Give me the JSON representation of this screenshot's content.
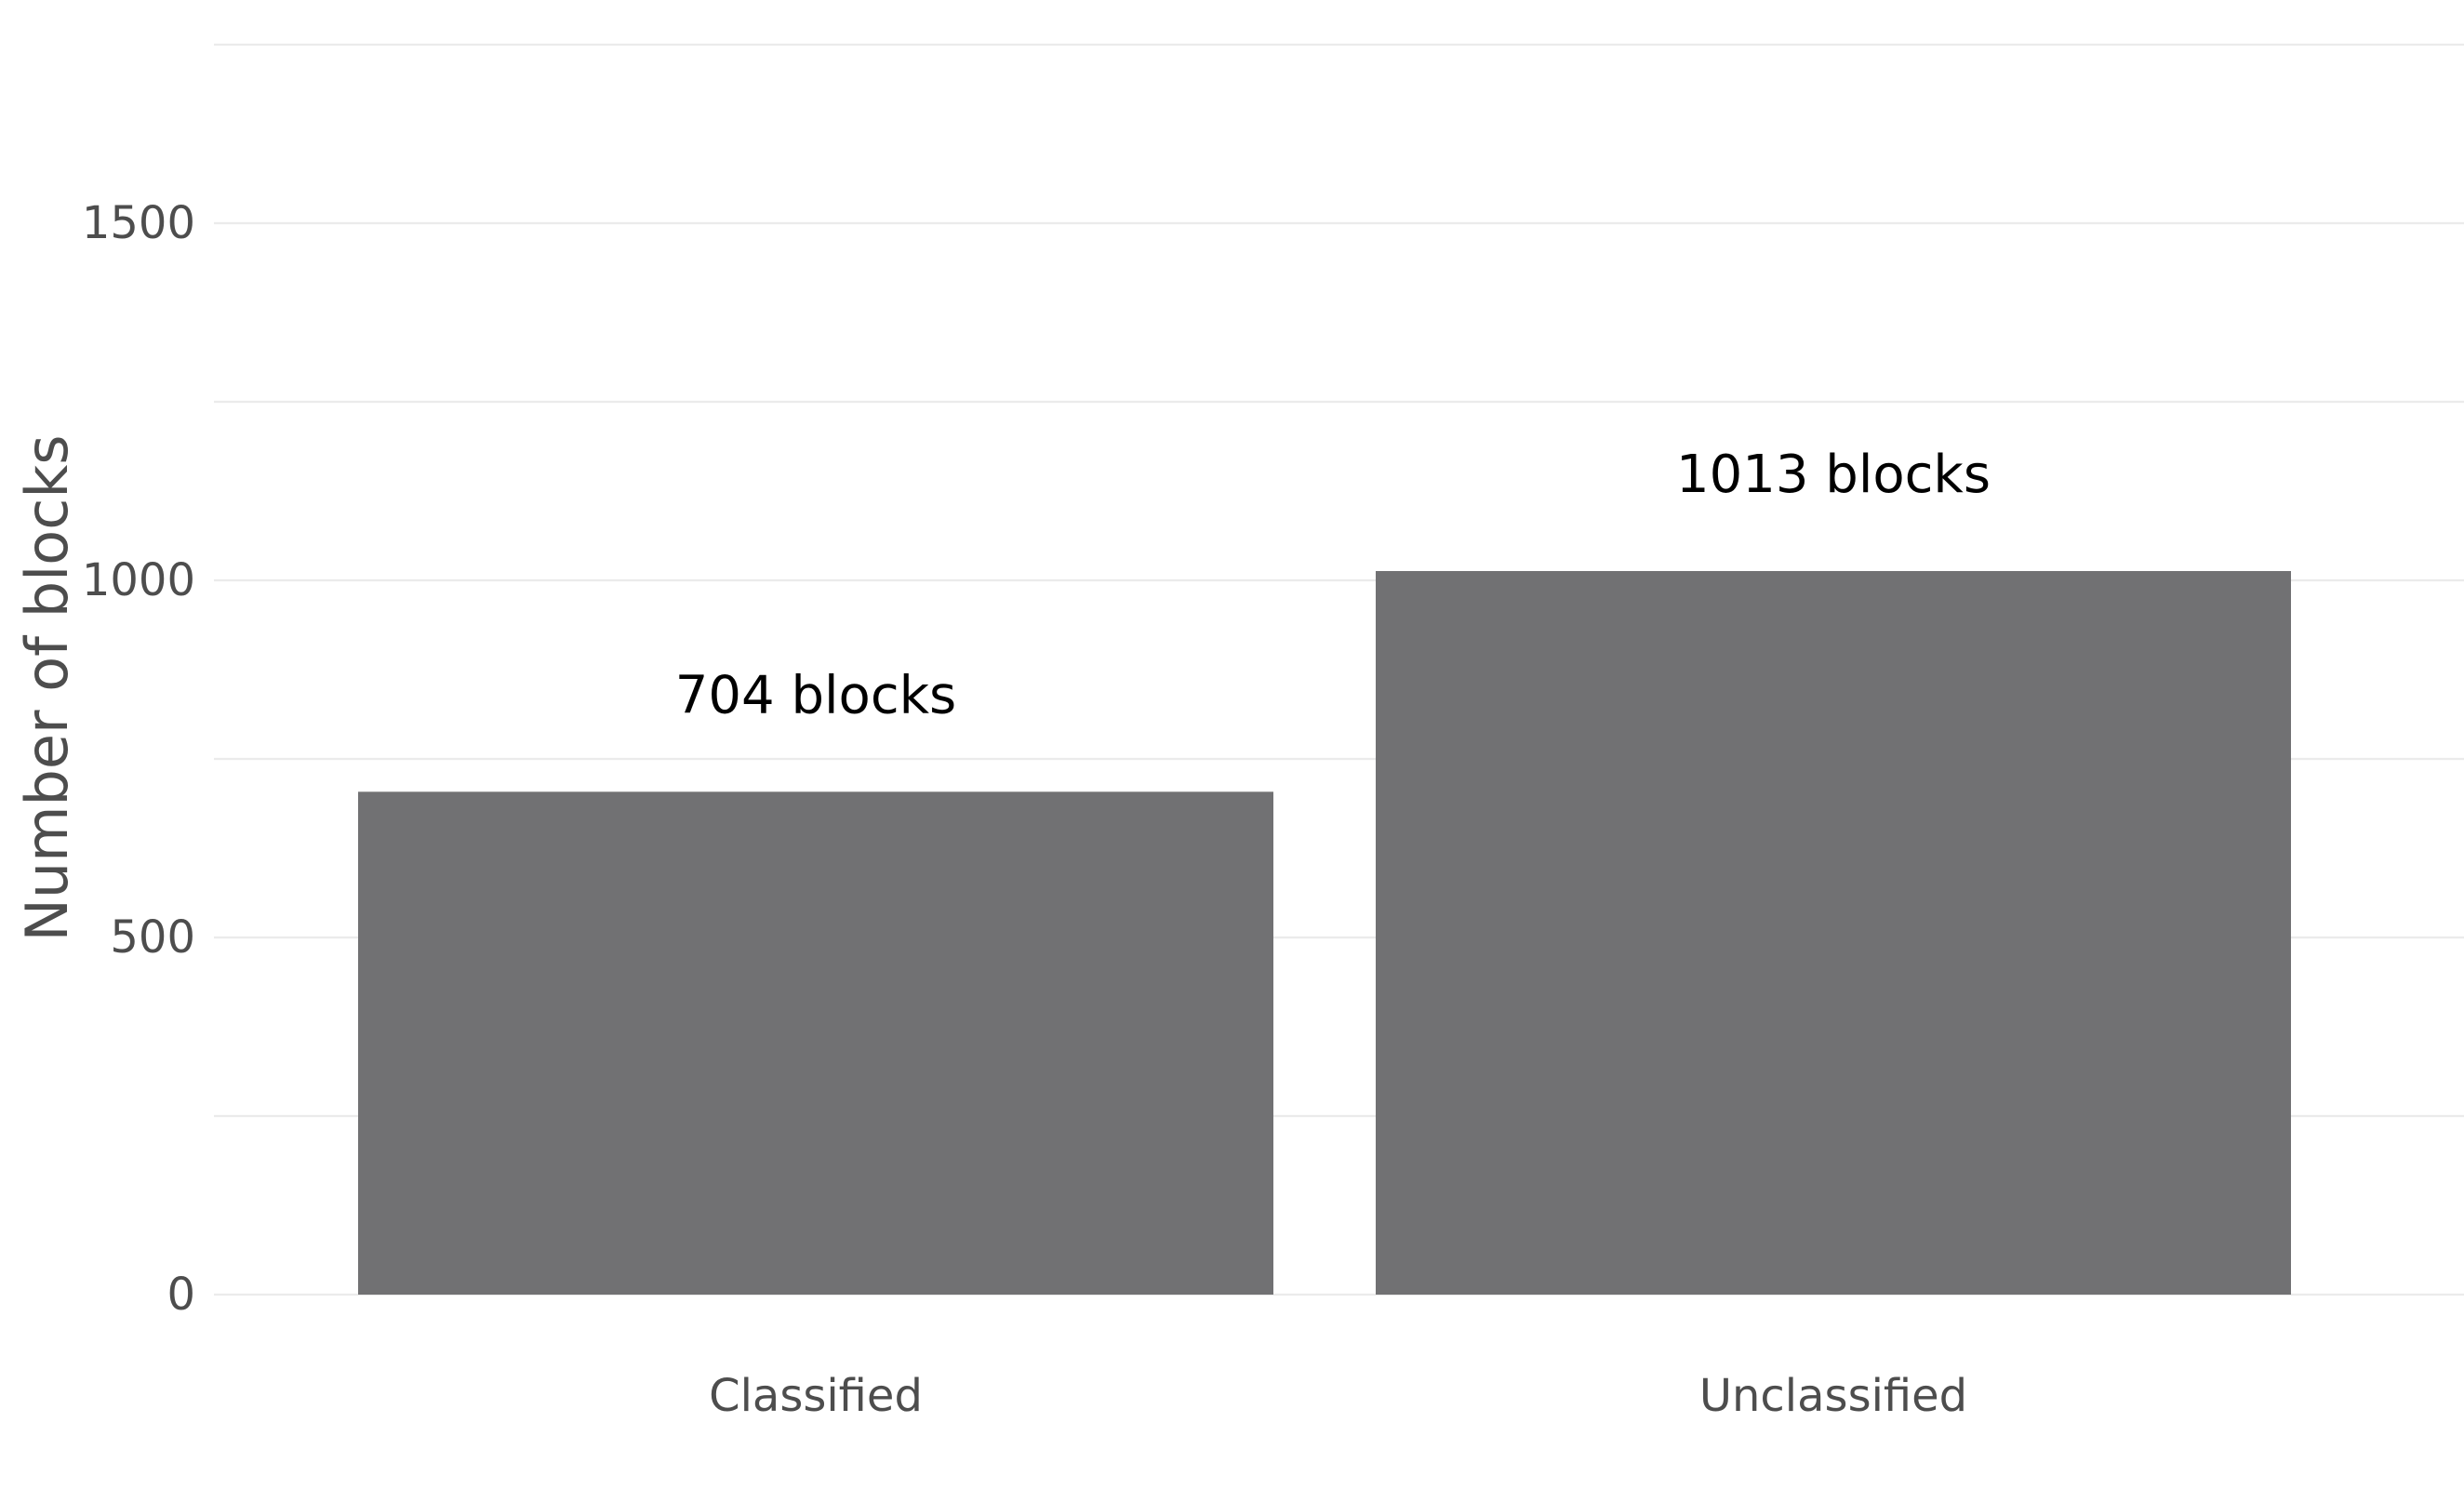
{
  "chart_data": {
    "type": "bar",
    "title": "",
    "xlabel": "",
    "ylabel": "Number of blocks",
    "categories": [
      "Classified",
      "Unclassified"
    ],
    "values": [
      704,
      1013
    ],
    "data_labels": [
      "704 blocks",
      "1013 blocks"
    ],
    "ylim": [
      0,
      1750
    ],
    "yticks": [
      0,
      500,
      1000,
      1500
    ],
    "ytick_labels": [
      "0",
      "500",
      "1000",
      "1500"
    ],
    "grid": true,
    "legend": "none",
    "bar_color": "#717173"
  }
}
